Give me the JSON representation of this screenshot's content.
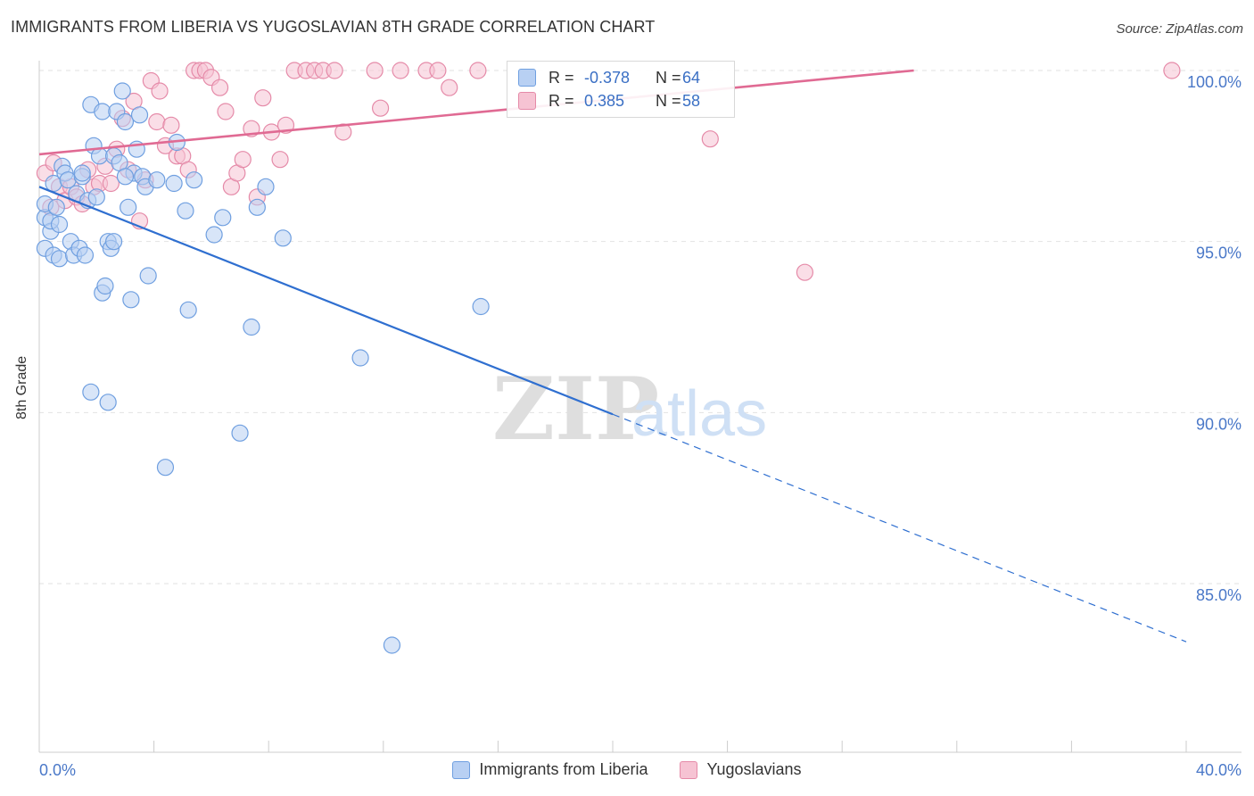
{
  "title": "IMMIGRANTS FROM LIBERIA VS YUGOSLAVIAN 8TH GRADE CORRELATION CHART",
  "source": "Source: ZipAtlas.com",
  "watermark": {
    "zip": "ZIP",
    "atlas": "atlas"
  },
  "colors": {
    "blue": "#6f9fe0",
    "blue_fill": "#b8d0f3",
    "blue_line": "#2f6fd0",
    "pink": "#e58aa8",
    "pink_fill": "#f6c3d3",
    "pink_line": "#e06a93",
    "axis_text": "#4a78c8"
  },
  "stats": {
    "r_label": "R =",
    "n_label": "N =",
    "rows": [
      {
        "r": "-0.378",
        "n": "64",
        "swatch": "blue"
      },
      {
        "r": "0.385",
        "n": "58",
        "swatch": "pink"
      }
    ]
  },
  "legend": [
    {
      "label": "Immigrants from Liberia",
      "swatch": "blue"
    },
    {
      "label": "Yugoslavians",
      "swatch": "pink"
    }
  ],
  "chart_data": {
    "type": "scatter",
    "title": "IMMIGRANTS FROM LIBERIA VS YUGOSLAVIAN 8TH GRADE CORRELATION CHART",
    "xlabel": "",
    "ylabel": "8th Grade",
    "xlim": [
      0,
      40
    ],
    "ylim": [
      80.6,
      100.7
    ],
    "x_tick_labels": [
      "0.0%",
      "40.0%"
    ],
    "y_ticks": [
      85,
      90,
      95,
      100
    ],
    "y_tick_labels": [
      "85.0%",
      "90.0%",
      "95.0%",
      "100.0%"
    ],
    "grid": "horizontal dashed",
    "legend_placement": "bottom-center",
    "series": [
      {
        "name": "Immigrants from Liberia",
        "color": "blue",
        "trend": {
          "x": [
            0,
            20,
            40
          ],
          "y": [
            96.6,
            89.95,
            83.3
          ],
          "solid_until_x": 20
        },
        "points": [
          [
            0.2,
            94.8
          ],
          [
            0.2,
            95.7
          ],
          [
            0.2,
            96.1
          ],
          [
            0.4,
            95.3
          ],
          [
            0.4,
            95.6
          ],
          [
            0.5,
            96.7
          ],
          [
            0.5,
            94.6
          ],
          [
            0.6,
            96.0
          ],
          [
            0.7,
            94.5
          ],
          [
            0.7,
            95.5
          ],
          [
            0.8,
            97.2
          ],
          [
            0.9,
            97.0
          ],
          [
            1.0,
            96.8
          ],
          [
            1.1,
            95.0
          ],
          [
            1.2,
            94.6
          ],
          [
            1.3,
            96.4
          ],
          [
            1.4,
            94.8
          ],
          [
            1.5,
            96.9
          ],
          [
            1.5,
            97.0
          ],
          [
            1.6,
            94.6
          ],
          [
            1.7,
            96.2
          ],
          [
            1.8,
            99.0
          ],
          [
            1.9,
            97.8
          ],
          [
            2.0,
            96.3
          ],
          [
            2.1,
            97.5
          ],
          [
            2.2,
            98.8
          ],
          [
            2.2,
            93.5
          ],
          [
            2.3,
            93.7
          ],
          [
            2.4,
            95.0
          ],
          [
            2.5,
            94.8
          ],
          [
            2.6,
            97.5
          ],
          [
            2.6,
            95.0
          ],
          [
            2.7,
            98.8
          ],
          [
            2.8,
            97.3
          ],
          [
            2.9,
            99.4
          ],
          [
            3.0,
            98.5
          ],
          [
            3.1,
            96.0
          ],
          [
            3.2,
            93.3
          ],
          [
            3.3,
            97.0
          ],
          [
            3.4,
            97.7
          ],
          [
            3.5,
            98.7
          ],
          [
            3.6,
            96.9
          ],
          [
            3.7,
            96.6
          ],
          [
            3.8,
            94.0
          ],
          [
            4.1,
            96.8
          ],
          [
            4.4,
            88.4
          ],
          [
            4.7,
            96.7
          ],
          [
            4.8,
            97.9
          ],
          [
            5.1,
            95.9
          ],
          [
            5.2,
            93.0
          ],
          [
            5.4,
            96.8
          ],
          [
            6.1,
            95.2
          ],
          [
            6.4,
            95.7
          ],
          [
            7.0,
            89.4
          ],
          [
            7.4,
            92.5
          ],
          [
            7.6,
            96.0
          ],
          [
            7.9,
            96.6
          ],
          [
            8.5,
            95.1
          ],
          [
            11.2,
            91.6
          ],
          [
            12.3,
            83.2
          ],
          [
            15.4,
            93.1
          ],
          [
            3.0,
            96.9
          ],
          [
            1.8,
            90.6
          ],
          [
            2.4,
            90.3
          ]
        ]
      },
      {
        "name": "Yugoslavians",
        "color": "pink",
        "trend": {
          "x": [
            0,
            30.5
          ],
          "y": [
            97.55,
            100.0
          ]
        },
        "points": [
          [
            0.2,
            97.0
          ],
          [
            0.4,
            96.0
          ],
          [
            0.5,
            97.3
          ],
          [
            0.7,
            96.6
          ],
          [
            0.9,
            96.2
          ],
          [
            1.1,
            96.6
          ],
          [
            1.3,
            96.3
          ],
          [
            1.5,
            96.1
          ],
          [
            1.7,
            97.1
          ],
          [
            1.9,
            96.6
          ],
          [
            2.1,
            96.7
          ],
          [
            2.3,
            97.2
          ],
          [
            2.5,
            96.7
          ],
          [
            2.7,
            97.7
          ],
          [
            2.9,
            98.6
          ],
          [
            3.1,
            97.1
          ],
          [
            3.3,
            99.1
          ],
          [
            3.5,
            95.6
          ],
          [
            3.7,
            96.8
          ],
          [
            3.9,
            99.7
          ],
          [
            4.1,
            98.5
          ],
          [
            4.2,
            99.4
          ],
          [
            4.4,
            97.8
          ],
          [
            4.6,
            98.4
          ],
          [
            4.8,
            97.5
          ],
          [
            5.0,
            97.5
          ],
          [
            5.2,
            97.1
          ],
          [
            5.4,
            100.0
          ],
          [
            5.6,
            100.0
          ],
          [
            5.8,
            100.0
          ],
          [
            6.0,
            99.8
          ],
          [
            6.3,
            99.5
          ],
          [
            6.5,
            98.8
          ],
          [
            6.7,
            96.6
          ],
          [
            6.9,
            97.0
          ],
          [
            7.1,
            97.4
          ],
          [
            7.4,
            98.3
          ],
          [
            7.6,
            96.3
          ],
          [
            7.8,
            99.2
          ],
          [
            8.1,
            98.2
          ],
          [
            8.4,
            97.4
          ],
          [
            8.6,
            98.4
          ],
          [
            8.9,
            100.0
          ],
          [
            9.3,
            100.0
          ],
          [
            9.6,
            100.0
          ],
          [
            9.9,
            100.0
          ],
          [
            10.3,
            100.0
          ],
          [
            10.6,
            98.2
          ],
          [
            11.7,
            100.0
          ],
          [
            11.9,
            98.9
          ],
          [
            12.6,
            100.0
          ],
          [
            13.5,
            100.0
          ],
          [
            13.9,
            100.0
          ],
          [
            14.3,
            99.5
          ],
          [
            15.3,
            100.0
          ],
          [
            23.4,
            98.0
          ],
          [
            26.7,
            94.1
          ],
          [
            39.5,
            100.0
          ]
        ]
      }
    ]
  }
}
